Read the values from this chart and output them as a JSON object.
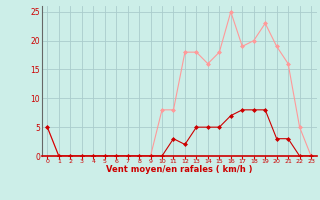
{
  "x": [
    0,
    1,
    2,
    3,
    4,
    5,
    6,
    7,
    8,
    9,
    10,
    11,
    12,
    13,
    14,
    15,
    16,
    17,
    18,
    19,
    20,
    21,
    22,
    23
  ],
  "vent_moyen": [
    5,
    0,
    0,
    0,
    0,
    0,
    0,
    0,
    0,
    0,
    0,
    3,
    2,
    5,
    5,
    5,
    7,
    8,
    8,
    8,
    3,
    3,
    0,
    0
  ],
  "en_rafales": [
    5,
    0,
    0,
    0,
    0,
    0,
    0,
    0,
    0,
    0,
    8,
    8,
    18,
    18,
    16,
    18,
    25,
    19,
    20,
    23,
    19,
    16,
    5,
    0
  ],
  "color_moyen": "#cc0000",
  "color_rafales": "#ff9999",
  "bg_color": "#cceee8",
  "grid_color": "#aacccc",
  "xlabel": "Vent moyen/en rafales ( km/h )",
  "xlabel_color": "#cc0000",
  "tick_color": "#cc0000",
  "ylim": [
    0,
    26
  ],
  "yticks": [
    0,
    5,
    10,
    15,
    20,
    25
  ],
  "xlim": [
    -0.5,
    23.5
  ]
}
